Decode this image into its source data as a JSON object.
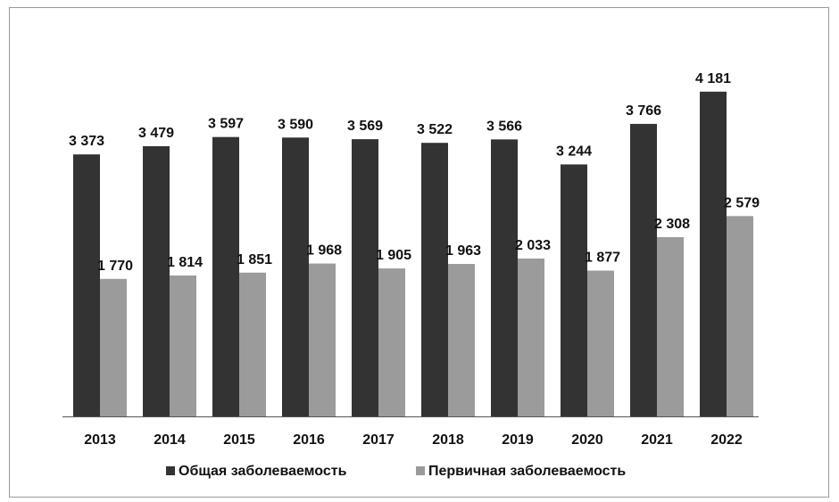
{
  "chart_data": {
    "type": "bar",
    "categories": [
      "2013",
      "2014",
      "2015",
      "2016",
      "2017",
      "2018",
      "2019",
      "2020",
      "2021",
      "2022"
    ],
    "series": [
      {
        "name": "Общая заболеваемость",
        "color": "#333333",
        "values": [
          3373,
          3479,
          3597,
          3590,
          3569,
          3522,
          3566,
          3244,
          3766,
          4181
        ],
        "labels": [
          "3 373",
          "3 479",
          "3 597",
          "3 590",
          "3 569",
          "3 522",
          "3 566",
          "3 244",
          "3 766",
          "4 181"
        ]
      },
      {
        "name": "Первичная заболеваемость",
        "color": "#9b9b9b",
        "values": [
          1770,
          1814,
          1851,
          1968,
          1905,
          1963,
          2033,
          1877,
          2308,
          2579
        ],
        "labels": [
          "1 770",
          "1 814",
          "1 851",
          "1 968",
          "1 905",
          "1 963",
          "2 033",
          "1 877",
          "2 308",
          "2 579"
        ]
      }
    ],
    "ylim": [
      0,
      4500
    ],
    "grid": false,
    "legend_position": "bottom"
  }
}
